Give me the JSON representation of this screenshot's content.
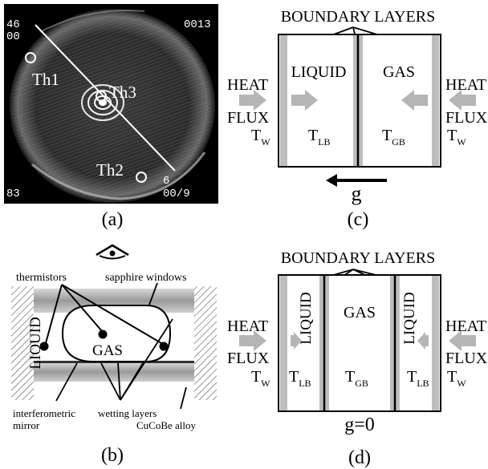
{
  "panel_a": {
    "label": "(a)",
    "corner_tl_1": "46",
    "corner_tl_2": "00",
    "corner_tr": "0013",
    "corner_bl": "83",
    "corner_br_1": "6",
    "corner_br_2": "00/9",
    "th1": "Th1",
    "th2": "Th2",
    "th3": "Th3"
  },
  "panel_b": {
    "label": "(b)",
    "thermistors": "thermistors",
    "sapphire_windows": "sapphire windows",
    "liquid": "LIQUID",
    "gas": "GAS",
    "interferometric_1": "interferometric",
    "interferometric_2": "mirror",
    "wetting_layers": "wetting layers",
    "alloy": "CuCoBe alloy"
  },
  "panel_c": {
    "label": "(c)",
    "title": "BOUNDARY LAYERS",
    "liquid": "LIQUID",
    "gas": "GAS",
    "heat_left": "HEAT",
    "flux_left": "FLUX",
    "heat_right": "HEAT",
    "flux_right": "FLUX",
    "t_main": "T",
    "t_sub_w": "W",
    "t_sub_lb": "LB",
    "t_sub_gb": "GB",
    "gravity": "g"
  },
  "panel_d": {
    "label": "(d)",
    "title": "BOUNDARY LAYERS",
    "liquid": "LIQUID",
    "gas": "GAS",
    "heat_left": "HEAT",
    "flux_left": "FLUX",
    "heat_right": "HEAT",
    "flux_right": "FLUX",
    "t_main": "T",
    "t_sub_w": "W",
    "t_sub_lb": "LB",
    "t_sub_gb": "GB",
    "gravity": "g=0"
  }
}
